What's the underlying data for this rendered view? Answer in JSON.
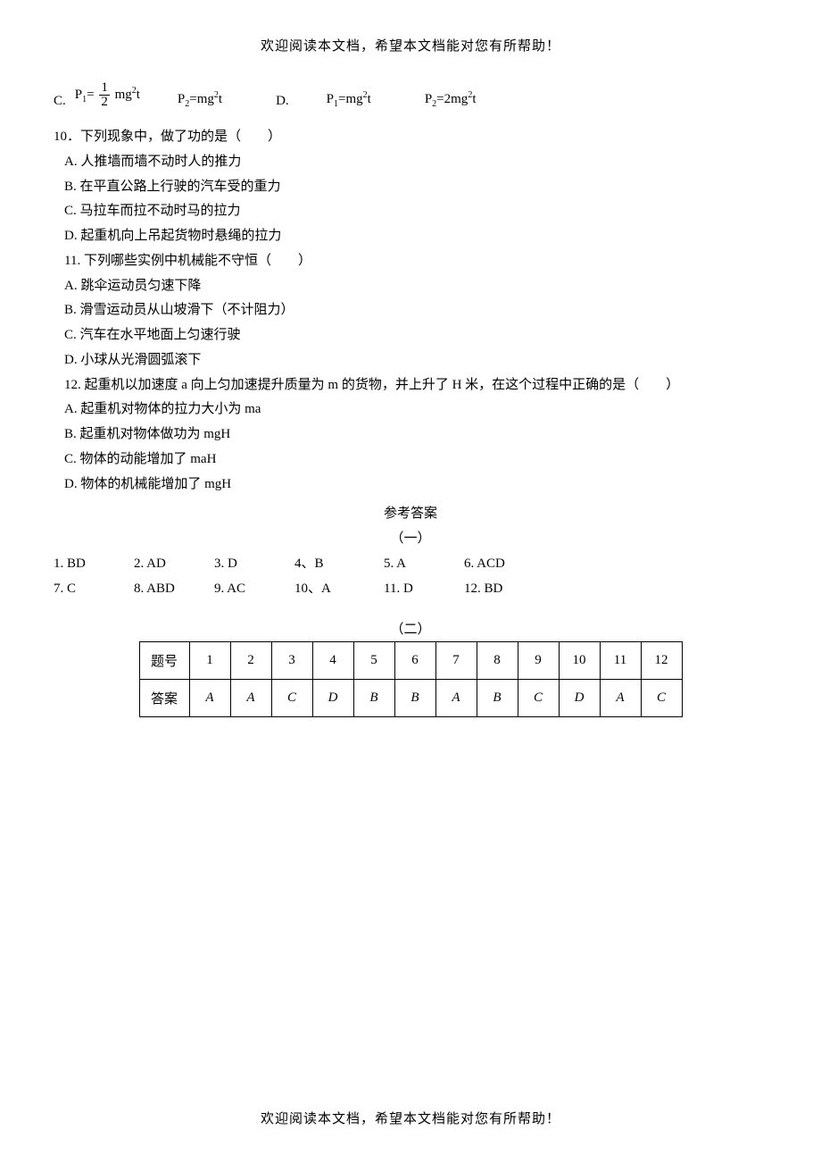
{
  "header_text": "欢迎阅读本文档，希望本文档能对您有所帮助！",
  "footer_text": "欢迎阅读本文档，希望本文档能对您有所帮助！",
  "formula": {
    "c_label": "C.",
    "p1_lhs": "P",
    "p1_sub": "1",
    "eq": "=",
    "frac_num": "1",
    "frac_den": "2",
    "mg2t": " mg",
    "sup2": "2",
    "t": "t",
    "p2_lhs": "P",
    "p2_sub": "2",
    "p2_rhs_mg": "=mg",
    "d_label": "D.",
    "d_p1_rhs_mg": "=mg",
    "d_p2_rhs_2mg": "=2mg"
  },
  "q10": {
    "stem": "10．下列现象中，做了功的是（　　）",
    "a": "A. 人推墙而墙不动时人的推力",
    "b": "B. 在平直公路上行驶的汽车受的重力",
    "c": "C. 马拉车而拉不动时马的拉力",
    "d": "D. 起重机向上吊起货物时悬绳的拉力"
  },
  "q11": {
    "stem": "11. 下列哪些实例中机械能不守恒（　　）",
    "a": "A. 跳伞运动员匀速下降",
    "b": "B. 滑雪运动员从山坡滑下（不计阻力）",
    "c": "C. 汽车在水平地面上匀速行驶",
    "d": "D. 小球从光滑圆弧滚下"
  },
  "q12": {
    "stem": "12. 起重机以加速度 a 向上匀加速提升质量为 m 的货物，并上升了 H 米，在这个过程中正确的是（　　）",
    "a": "A. 起重机对物体的拉力大小为 ma",
    "b": "B. 起重机对物体做功为 mgH",
    "c": "C. 物体的动能增加了 maH",
    "d": "D. 物体的机械能增加了 mgH"
  },
  "answers": {
    "title": "参考答案",
    "sub1": "（一）",
    "row1": [
      "1. BD",
      "2. AD",
      "3. D",
      "4、B",
      "5. A",
      "6. ACD"
    ],
    "row2": [
      "7. C",
      "8. ABD",
      "9. AC",
      "10、A",
      "11. D",
      "12. BD"
    ],
    "sub2": "（二）",
    "table_header_label": "题号",
    "table_answer_label": "答案",
    "table_nums": [
      "1",
      "2",
      "3",
      "4",
      "5",
      "6",
      "7",
      "8",
      "9",
      "10",
      "11",
      "12"
    ],
    "table_ans": [
      "A",
      "A",
      "C",
      "D",
      "B",
      "B",
      "A",
      "B",
      "C",
      "D",
      "A",
      "C"
    ]
  }
}
